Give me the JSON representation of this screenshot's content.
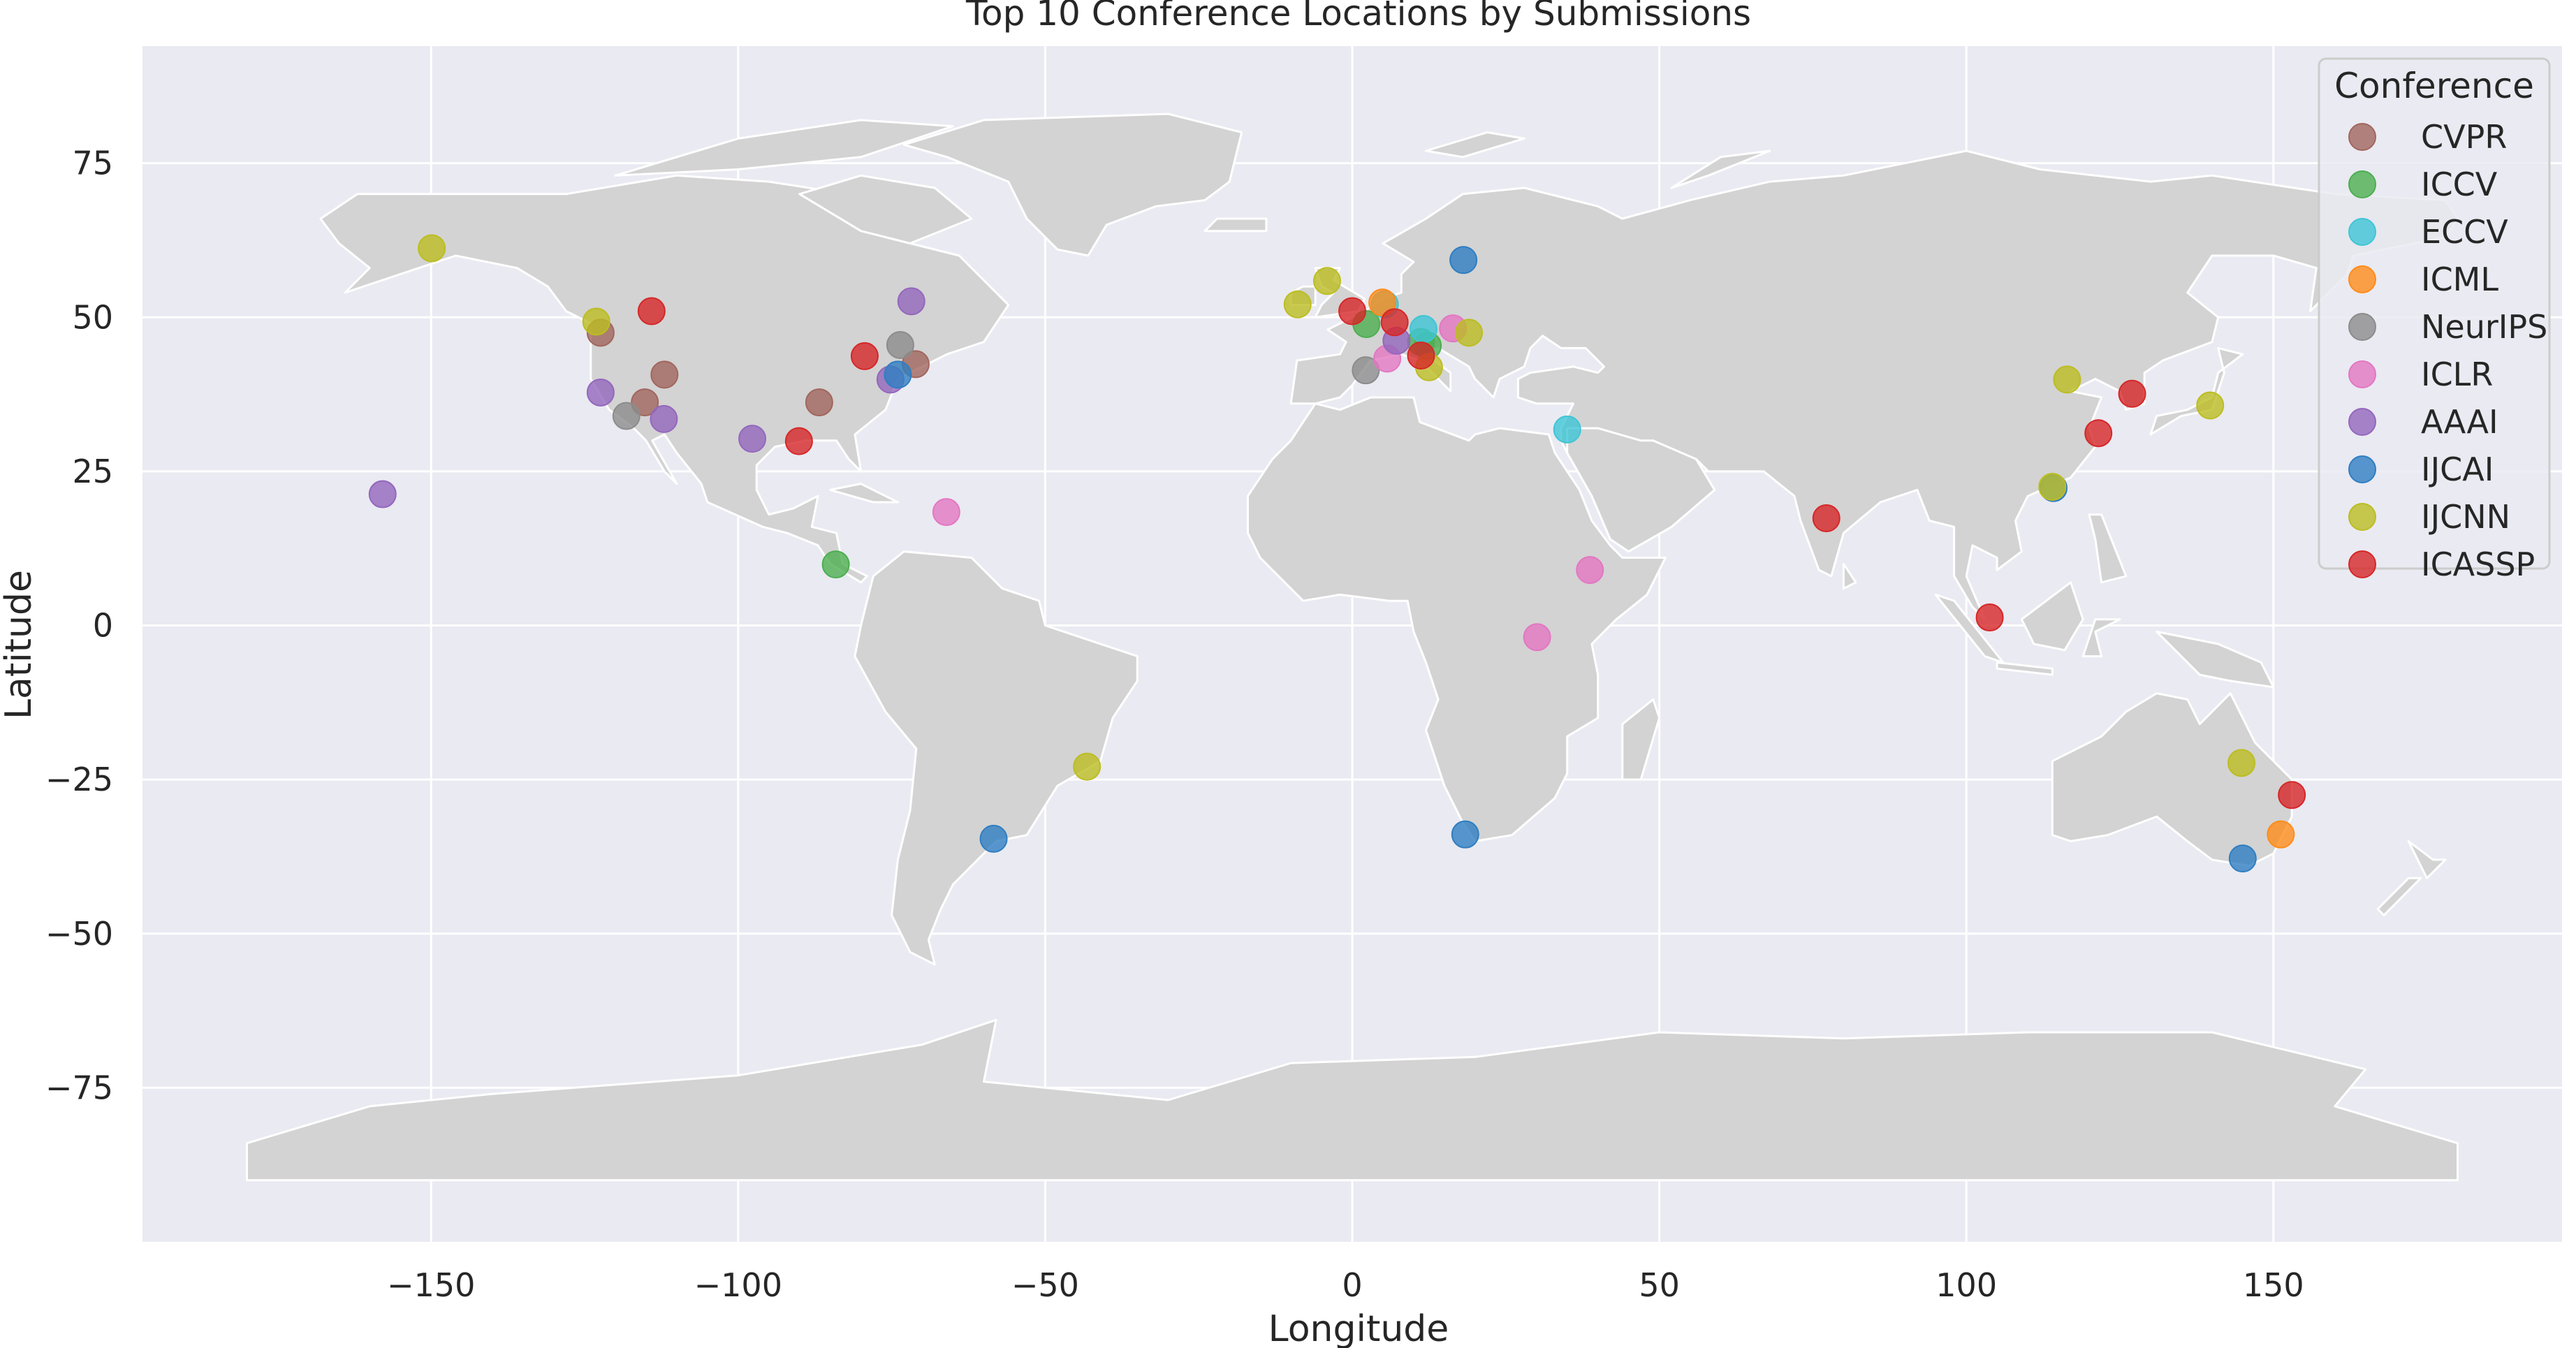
{
  "chart_data": {
    "type": "scatter",
    "title": "Top 10 Conference Locations by Submissions",
    "xlabel": "Longitude",
    "ylabel": "Latitude",
    "xlim": [
      -197,
      197
    ],
    "ylim": [
      -100,
      94
    ],
    "xticks": [
      -150,
      -100,
      -50,
      0,
      50,
      100,
      150
    ],
    "xtick_labels": [
      "−150",
      "−100",
      "−50",
      "0",
      "50",
      "100",
      "150"
    ],
    "yticks": [
      -75,
      -50,
      -25,
      0,
      25,
      50,
      75
    ],
    "ytick_labels": [
      "−75",
      "−50",
      "−25",
      "0",
      "25",
      "50",
      "75"
    ],
    "grid": true,
    "background": "world map",
    "legend": {
      "title": "Conference",
      "position": "top-right"
    },
    "series": [
      {
        "name": "CVPR",
        "color": "#a1665e",
        "points": [
          [
            -122.4,
            47.5
          ],
          [
            -115.2,
            36.2
          ],
          [
            -112.0,
            40.7
          ],
          [
            -86.8,
            36.2
          ],
          [
            -71.1,
            42.4
          ]
        ]
      },
      {
        "name": "ICCV",
        "color": "#4caf50",
        "points": [
          [
            -84.1,
            9.9
          ],
          [
            2.3,
            48.9
          ],
          [
            11.2,
            46.0
          ],
          [
            12.3,
            45.4
          ]
        ]
      },
      {
        "name": "ECCV",
        "color": "#3fc5d6",
        "points": [
          [
            35.0,
            31.8
          ],
          [
            5.3,
            52.1
          ],
          [
            11.6,
            48.1
          ]
        ]
      },
      {
        "name": "ICML",
        "color": "#ff8c1a",
        "points": [
          [
            151.2,
            -33.9
          ],
          [
            4.9,
            52.4
          ]
        ]
      },
      {
        "name": "NeurIPS",
        "color": "#8c8c8c",
        "points": [
          [
            -118.2,
            34.0
          ],
          [
            -73.6,
            45.5
          ],
          [
            2.2,
            41.4
          ]
        ]
      },
      {
        "name": "ICLR",
        "color": "#e377c2",
        "points": [
          [
            -66.1,
            18.4
          ],
          [
            30.1,
            -1.9
          ],
          [
            38.7,
            9.0
          ],
          [
            16.4,
            48.2
          ],
          [
            5.7,
            43.3
          ]
        ]
      },
      {
        "name": "AAAI",
        "color": "#9467bd",
        "points": [
          [
            -157.9,
            21.3
          ],
          [
            -122.4,
            37.8
          ],
          [
            -112.1,
            33.5
          ],
          [
            -97.7,
            30.3
          ],
          [
            -71.8,
            52.6
          ],
          [
            -75.2,
            39.9
          ],
          [
            7.2,
            46.2
          ]
        ]
      },
      {
        "name": "IJCAI",
        "color": "#2f7ec2",
        "points": [
          [
            18.1,
            59.3
          ],
          [
            -74.0,
            40.7
          ],
          [
            -58.4,
            -34.6
          ],
          [
            18.4,
            -33.9
          ],
          [
            145.0,
            -37.8
          ],
          [
            114.2,
            22.3
          ]
        ]
      },
      {
        "name": "IJCNN",
        "color": "#bcbd22",
        "points": [
          [
            -149.9,
            61.2
          ],
          [
            -123.1,
            49.3
          ],
          [
            -43.2,
            -22.9
          ],
          [
            -8.9,
            52.1
          ],
          [
            -4.1,
            55.9
          ],
          [
            19.0,
            47.5
          ],
          [
            12.5,
            41.9
          ],
          [
            116.4,
            39.9
          ],
          [
            139.7,
            35.7
          ],
          [
            114.0,
            22.5
          ],
          [
            144.8,
            -22.3
          ]
        ]
      },
      {
        "name": "ICASSP",
        "color": "#d62728",
        "points": [
          [
            -114.1,
            51.0
          ],
          [
            -90.1,
            29.9
          ],
          [
            -79.4,
            43.7
          ],
          [
            0.0,
            51.0
          ],
          [
            6.9,
            49.2
          ],
          [
            11.2,
            43.8
          ],
          [
            77.2,
            17.4
          ],
          [
            103.8,
            1.3
          ],
          [
            121.5,
            31.2
          ],
          [
            127.0,
            37.6
          ],
          [
            153.0,
            -27.5
          ]
        ]
      }
    ]
  }
}
